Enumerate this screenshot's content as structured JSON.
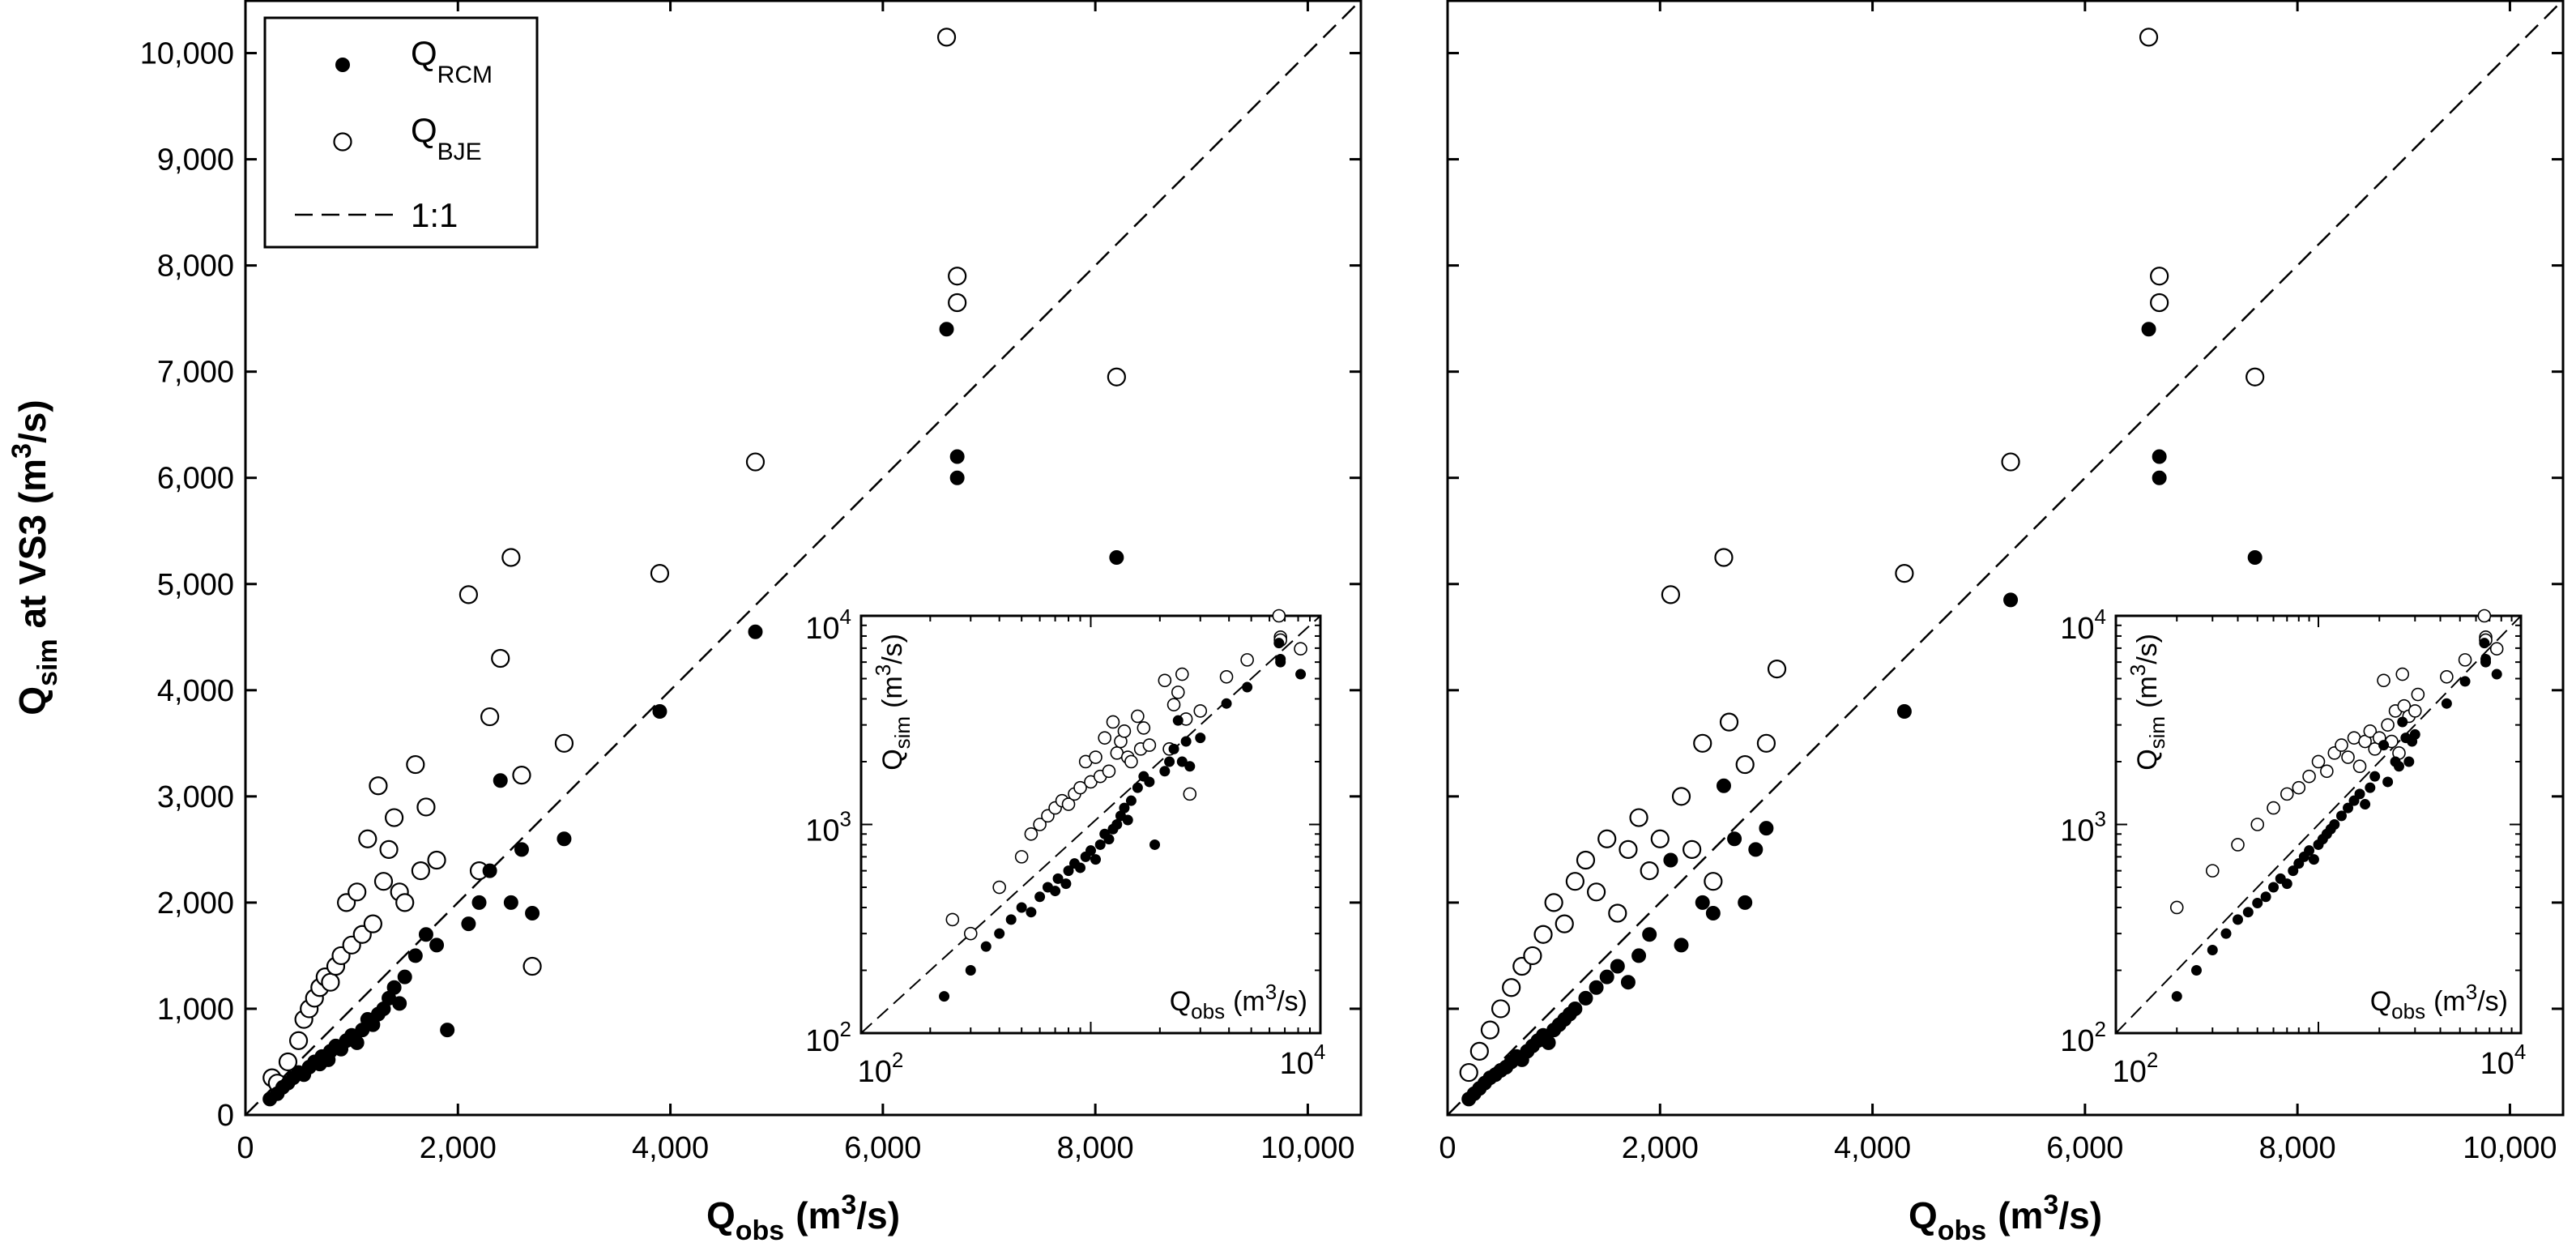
{
  "chart_data": [
    {
      "type": "scatter",
      "panel": "left",
      "xlabel": "Q_obs (m3/s)",
      "ylabel": "Q_sim at VS3 (m3/s)",
      "xlim": [
        0,
        10500
      ],
      "ylim": [
        0,
        10500
      ],
      "xticks": [
        0,
        2000,
        4000,
        6000,
        8000,
        10000
      ],
      "yticks": [
        0,
        1000,
        2000,
        3000,
        4000,
        5000,
        6000,
        7000,
        8000,
        9000,
        10000
      ],
      "xtick_labels": [
        "0",
        "2,000",
        "4,000",
        "6,000",
        "8,000",
        "10,000"
      ],
      "ytick_labels": [
        "0",
        "1,000",
        "2,000",
        "3,000",
        "4,000",
        "5,000",
        "6,000",
        "7,000",
        "8,000",
        "9,000",
        "10,000"
      ],
      "legend_position": "top-left",
      "series": [
        {
          "name": "Q_RCM",
          "marker": "filled-circle",
          "x": [
            230,
            300,
            350,
            400,
            450,
            500,
            550,
            600,
            650,
            700,
            720,
            780,
            800,
            850,
            900,
            950,
            1000,
            1050,
            1100,
            1150,
            1200,
            1250,
            1300,
            1350,
            1400,
            1450,
            1500,
            1600,
            1700,
            1800,
            1900,
            2100,
            2200,
            2300,
            2400,
            2500,
            2600,
            2700,
            3000,
            3900,
            4800,
            6600,
            6700,
            6700,
            8200
          ],
          "y": [
            150,
            200,
            260,
            300,
            350,
            400,
            380,
            450,
            500,
            480,
            550,
            520,
            600,
            650,
            620,
            700,
            750,
            680,
            800,
            900,
            850,
            950,
            1000,
            1100,
            1200,
            1050,
            1300,
            1500,
            1700,
            1600,
            800,
            1800,
            2000,
            2300,
            3150,
            2000,
            2500,
            1900,
            2600,
            3800,
            4550,
            7400,
            6200,
            6000,
            5250
          ]
        },
        {
          "name": "Q_BJE",
          "marker": "open-circle",
          "x": [
            250,
            300,
            400,
            500,
            550,
            600,
            650,
            700,
            750,
            800,
            850,
            900,
            950,
            1000,
            1050,
            1100,
            1150,
            1200,
            1250,
            1300,
            1350,
            1400,
            1450,
            1500,
            1600,
            1650,
            1700,
            1800,
            2100,
            2200,
            2300,
            2400,
            2500,
            2600,
            2700,
            3000,
            3900,
            4800,
            6600,
            6700,
            6700,
            8200
          ],
          "y": [
            350,
            300,
            500,
            700,
            900,
            1000,
            1100,
            1200,
            1300,
            1250,
            1400,
            1500,
            2000,
            1600,
            2100,
            1700,
            2600,
            1800,
            3100,
            2200,
            2500,
            2800,
            2100,
            2000,
            3300,
            2300,
            2900,
            2400,
            4900,
            2300,
            3750,
            4300,
            5250,
            3200,
            1400,
            3500,
            5100,
            6150,
            10150,
            7900,
            7650,
            6950
          ]
        }
      ],
      "reference_line": {
        "name": "1:1",
        "x": [
          0,
          10500
        ],
        "y": [
          0,
          10500
        ]
      },
      "inset": {
        "type": "scatter",
        "scale": "log-log",
        "xlim": [
          100,
          10000
        ],
        "ylim": [
          100,
          10000
        ],
        "xlabel": "Q_obs (m3/s)",
        "ylabel": "Q_sim (m3/s)",
        "x_min_label": "10",
        "x_min_exp": "2",
        "x_max_label": "10",
        "x_max_exp": "4",
        "y_min_label": "10",
        "y_min_exp": "2",
        "y_mid_label": "10",
        "y_mid_exp": "3",
        "y_max_label": "10",
        "y_max_exp": "4"
      }
    },
    {
      "type": "scatter",
      "panel": "right",
      "xlabel": "Q_obs (m3/s)",
      "xlim": [
        0,
        10500
      ],
      "ylim": [
        0,
        10500
      ],
      "xticks": [
        0,
        2000,
        4000,
        6000,
        8000,
        10000
      ],
      "yticks": [
        0,
        1000,
        2000,
        3000,
        4000,
        5000,
        6000,
        7000,
        8000,
        9000,
        10000
      ],
      "xtick_labels": [
        "0",
        "2,000",
        "4,000",
        "6,000",
        "8,000",
        "10,000"
      ],
      "series": [
        {
          "name": "Q_RCM",
          "marker": "filled-circle",
          "x": [
            200,
            250,
            300,
            350,
            400,
            450,
            500,
            550,
            600,
            650,
            700,
            750,
            800,
            850,
            900,
            950,
            1000,
            1050,
            1100,
            1150,
            1200,
            1300,
            1400,
            1500,
            1600,
            1700,
            1800,
            1900,
            2100,
            2200,
            2400,
            2500,
            2600,
            2700,
            2800,
            2900,
            3000,
            4300,
            5300,
            6600,
            6700,
            6700,
            7600
          ],
          "y": [
            150,
            200,
            250,
            300,
            350,
            380,
            420,
            450,
            500,
            550,
            520,
            600,
            650,
            700,
            750,
            680,
            800,
            850,
            900,
            950,
            1000,
            1100,
            1200,
            1300,
            1400,
            1250,
            1500,
            1700,
            2400,
            1600,
            2000,
            1900,
            3100,
            2600,
            2000,
            2500,
            2700,
            3800,
            4850,
            7400,
            6200,
            6000,
            5250
          ]
        },
        {
          "name": "Q_BJE",
          "marker": "open-circle",
          "x": [
            200,
            300,
            400,
            500,
            600,
            700,
            800,
            900,
            1000,
            1100,
            1200,
            1300,
            1400,
            1500,
            1600,
            1700,
            1800,
            1900,
            2000,
            2100,
            2200,
            2300,
            2400,
            2500,
            2600,
            2650,
            2800,
            3000,
            3100,
            4300,
            5300,
            6600,
            6700,
            6700,
            7600
          ],
          "y": [
            400,
            600,
            800,
            1000,
            1200,
            1400,
            1500,
            1700,
            2000,
            1800,
            2200,
            2400,
            2100,
            2600,
            1900,
            2500,
            2800,
            2300,
            2600,
            4900,
            3000,
            2500,
            3500,
            2200,
            5250,
            3700,
            3300,
            3500,
            4200,
            5100,
            6150,
            10150,
            7900,
            7650,
            6950
          ]
        }
      ],
      "reference_line": {
        "name": "1:1",
        "x": [
          0,
          10500
        ],
        "y": [
          0,
          10500
        ]
      },
      "inset": {
        "type": "scatter",
        "scale": "log-log",
        "xlim": [
          100,
          10000
        ],
        "ylim": [
          100,
          10000
        ],
        "xlabel": "Q_obs (m3/s)",
        "ylabel": "Q_sim (m3/s)",
        "x_min_label": "10",
        "x_min_exp": "2",
        "x_max_label": "10",
        "x_max_exp": "4",
        "y_min_label": "10",
        "y_min_exp": "2",
        "y_mid_label": "10",
        "y_mid_exp": "3",
        "y_max_label": "10",
        "y_max_exp": "4"
      }
    }
  ],
  "labels": {
    "q": "Q",
    "obs": "obs",
    "sim": "sim",
    "units_open": "(m",
    "units_exp": "3",
    "units_close": "/s)",
    "at_vs3": " at VS3 ",
    "legend_rcm_sub": "RCM",
    "legend_bje_sub": "BJE",
    "legend_line": "1:1"
  }
}
